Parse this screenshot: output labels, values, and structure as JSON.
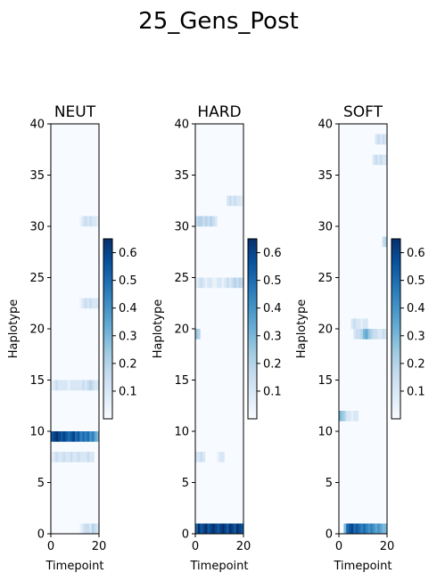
{
  "figure_title": "25_Gens_Post",
  "chart_data": [
    {
      "type": "heatmap",
      "title": "NEUT",
      "xlabel": "Timepoint",
      "ylabel": "Haplotype",
      "xlim": [
        0,
        20
      ],
      "ylim": [
        0,
        40
      ],
      "xticks": [
        "0",
        "20"
      ],
      "yticks": [
        "0",
        "5",
        "10",
        "15",
        "20",
        "25",
        "30",
        "35",
        "40"
      ],
      "colorbar": {
        "cmap": "Blues",
        "range": [
          0,
          0.65
        ],
        "ticks": [
          "0.1",
          "0.2",
          "0.3",
          "0.4",
          "0.5",
          "0.6"
        ]
      },
      "rows": [
        {
          "haplotype": 0,
          "values": [
            0,
            0,
            0,
            0,
            0,
            0,
            0,
            0,
            0,
            0,
            0,
            0,
            0.05,
            0.1,
            0.15,
            0.15,
            0.1,
            0.2,
            0.15,
            0.1
          ]
        },
        {
          "haplotype": 7,
          "values": [
            0.05,
            0.1,
            0.15,
            0.1,
            0.1,
            0.15,
            0.1,
            0.1,
            0.15,
            0.1,
            0.1,
            0.15,
            0.1,
            0.1,
            0.1,
            0.15,
            0.1,
            0.1,
            0,
            0
          ]
        },
        {
          "haplotype": 9,
          "values": [
            0.55,
            0.6,
            0.65,
            0.6,
            0.55,
            0.6,
            0.55,
            0.5,
            0.55,
            0.6,
            0.5,
            0.55,
            0.45,
            0.5,
            0.45,
            0.5,
            0.4,
            0.45,
            0.35,
            0.3
          ]
        },
        {
          "haplotype": 14,
          "values": [
            0.05,
            0.1,
            0.15,
            0.1,
            0.1,
            0.1,
            0.1,
            0.05,
            0.1,
            0.1,
            0.1,
            0.1,
            0.1,
            0.15,
            0.1,
            0.15,
            0.2,
            0.15,
            0.1,
            0.1
          ]
        },
        {
          "haplotype": 22,
          "values": [
            0,
            0,
            0,
            0,
            0,
            0,
            0,
            0,
            0,
            0,
            0,
            0,
            0.05,
            0.1,
            0.15,
            0.1,
            0.15,
            0.1,
            0.1,
            0.1
          ]
        },
        {
          "haplotype": 30,
          "values": [
            0,
            0,
            0,
            0,
            0,
            0,
            0,
            0,
            0,
            0,
            0,
            0,
            0.05,
            0.1,
            0.15,
            0.1,
            0.15,
            0.1,
            0.1,
            0.05
          ]
        }
      ]
    },
    {
      "type": "heatmap",
      "title": "HARD",
      "xlabel": "Timepoint",
      "ylabel": "Haplotype",
      "xlim": [
        0,
        20
      ],
      "ylim": [
        0,
        40
      ],
      "xticks": [
        "0",
        "20"
      ],
      "yticks": [
        "0",
        "5",
        "10",
        "15",
        "20",
        "25",
        "30",
        "35",
        "40"
      ],
      "colorbar": {
        "cmap": "Blues",
        "range": [
          0,
          0.65
        ],
        "ticks": [
          "0.1",
          "0.2",
          "0.3",
          "0.4",
          "0.5",
          "0.6"
        ]
      },
      "rows": [
        {
          "haplotype": 0,
          "values": [
            0.5,
            0.65,
            0.55,
            0.6,
            0.65,
            0.55,
            0.6,
            0.65,
            0.6,
            0.55,
            0.6,
            0.65,
            0.6,
            0.55,
            0.65,
            0.6,
            0.55,
            0.65,
            0.6,
            0.55
          ]
        },
        {
          "haplotype": 7,
          "values": [
            0.1,
            0.1,
            0.15,
            0.1,
            0,
            0,
            0,
            0,
            0,
            0.05,
            0.1,
            0.1,
            0,
            0,
            0,
            0,
            0,
            0,
            0,
            0
          ]
        },
        {
          "haplotype": 19,
          "values": [
            0.25,
            0.2,
            0,
            0,
            0,
            0,
            0,
            0,
            0,
            0,
            0,
            0,
            0,
            0,
            0,
            0,
            0,
            0,
            0,
            0
          ]
        },
        {
          "haplotype": 24,
          "values": [
            0.05,
            0.1,
            0.15,
            0.1,
            0.05,
            0.1,
            0.1,
            0.05,
            0.05,
            0.1,
            0.1,
            0.05,
            0.1,
            0.15,
            0.1,
            0.15,
            0.2,
            0.15,
            0.2,
            0.15
          ]
        },
        {
          "haplotype": 30,
          "values": [
            0.15,
            0.2,
            0.2,
            0.15,
            0.2,
            0.15,
            0.2,
            0.15,
            0.1,
            0,
            0,
            0,
            0,
            0,
            0,
            0,
            0,
            0,
            0,
            0
          ]
        },
        {
          "haplotype": 32,
          "values": [
            0,
            0,
            0,
            0,
            0,
            0,
            0,
            0,
            0,
            0,
            0,
            0,
            0,
            0.1,
            0.15,
            0.1,
            0.15,
            0.1,
            0.1,
            0.05
          ]
        }
      ]
    },
    {
      "type": "heatmap",
      "title": "SOFT",
      "xlabel": "Timepoint",
      "ylabel": "Haplotype",
      "xlim": [
        0,
        20
      ],
      "ylim": [
        0,
        40
      ],
      "xticks": [
        "0",
        "20"
      ],
      "yticks": [
        "0",
        "5",
        "10",
        "15",
        "20",
        "25",
        "30",
        "35",
        "40"
      ],
      "colorbar": {
        "cmap": "Blues",
        "range": [
          0,
          0.65
        ],
        "ticks": [
          "0.1",
          "0.2",
          "0.3",
          "0.4",
          "0.5",
          "0.6"
        ]
      },
      "rows": [
        {
          "haplotype": 0,
          "values": [
            0,
            0,
            0.3,
            0.5,
            0.55,
            0.6,
            0.5,
            0.55,
            0.5,
            0.45,
            0.5,
            0.45,
            0.4,
            0.45,
            0.4,
            0.35,
            0.4,
            0.35,
            0.3,
            0.3
          ]
        },
        {
          "haplotype": 11,
          "values": [
            0.3,
            0.25,
            0.2,
            0.1,
            0.1,
            0.05,
            0.1,
            0.1,
            0,
            0,
            0,
            0,
            0,
            0,
            0,
            0,
            0,
            0,
            0,
            0
          ]
        },
        {
          "haplotype": 19,
          "values": [
            0,
            0,
            0,
            0,
            0,
            0,
            0.1,
            0.15,
            0.15,
            0.2,
            0.3,
            0.35,
            0.25,
            0.2,
            0.15,
            0.15,
            0.1,
            0.1,
            0.15,
            0.1
          ]
        },
        {
          "haplotype": 20,
          "values": [
            0,
            0,
            0,
            0,
            0,
            0.1,
            0.15,
            0.1,
            0.1,
            0.05,
            0.1,
            0.1,
            0,
            0,
            0,
            0,
            0,
            0,
            0,
            0
          ]
        },
        {
          "haplotype": 28,
          "values": [
            0,
            0,
            0,
            0,
            0,
            0,
            0,
            0,
            0,
            0,
            0,
            0,
            0,
            0,
            0,
            0,
            0,
            0,
            0.15,
            0.2
          ]
        },
        {
          "haplotype": 36,
          "values": [
            0,
            0,
            0,
            0,
            0,
            0,
            0,
            0,
            0,
            0,
            0,
            0,
            0,
            0,
            0.1,
            0.15,
            0.1,
            0.15,
            0.1,
            0.1
          ]
        },
        {
          "haplotype": 38,
          "values": [
            0,
            0,
            0,
            0,
            0,
            0,
            0,
            0,
            0,
            0,
            0,
            0,
            0,
            0,
            0,
            0.1,
            0.15,
            0.1,
            0.15,
            0.1
          ]
        }
      ]
    }
  ]
}
